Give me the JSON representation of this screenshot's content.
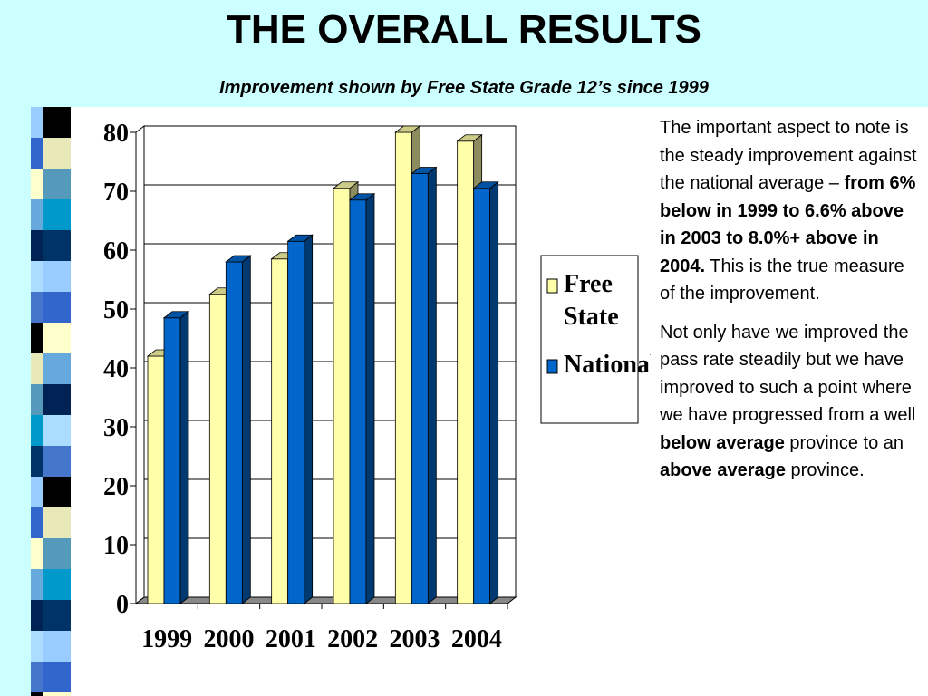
{
  "title": "THE OVERALL RESULTS",
  "subtitle": "Improvement shown by Free State Grade 12’s since 1999",
  "colors": {
    "background": "#ccffff",
    "panel": "#ffffff",
    "free_state": "#ffffaa",
    "national": "#0066cc"
  },
  "chart_data": {
    "type": "bar",
    "categories": [
      "1999",
      "2000",
      "2001",
      "2002",
      "2003",
      "2004"
    ],
    "series": [
      {
        "name": "Free State",
        "values": [
          42,
          52.5,
          58.5,
          70.5,
          80,
          78.5
        ]
      },
      {
        "name": "National",
        "values": [
          48.5,
          58,
          61.5,
          68.5,
          73,
          70.5
        ]
      }
    ],
    "yticks": [
      "0",
      "10",
      "20",
      "30",
      "40",
      "50",
      "60",
      "70",
      "80"
    ],
    "ylim": [
      0,
      80
    ],
    "grid": true,
    "legend_position": "right",
    "legend_labels": [
      "Free State",
      "National"
    ],
    "style": "3d-clustered-column"
  },
  "note": {
    "p1_text": "The important aspect to note is the steady improvement against the national average – ",
    "p1_bold": "from 6% below in 1999 to 6.6% above in 2003 to 8.0%+ above in 2004.",
    "p1_tail": " This is the true measure of the improvement.",
    "p2_a": "Not only have we improved the pass rate steadily but we have improved to such a point where we have progressed from a well ",
    "p2_bold1": "below average",
    "p2_b": " province to an ",
    "p2_bold2": "above average",
    "p2_c": " province."
  }
}
